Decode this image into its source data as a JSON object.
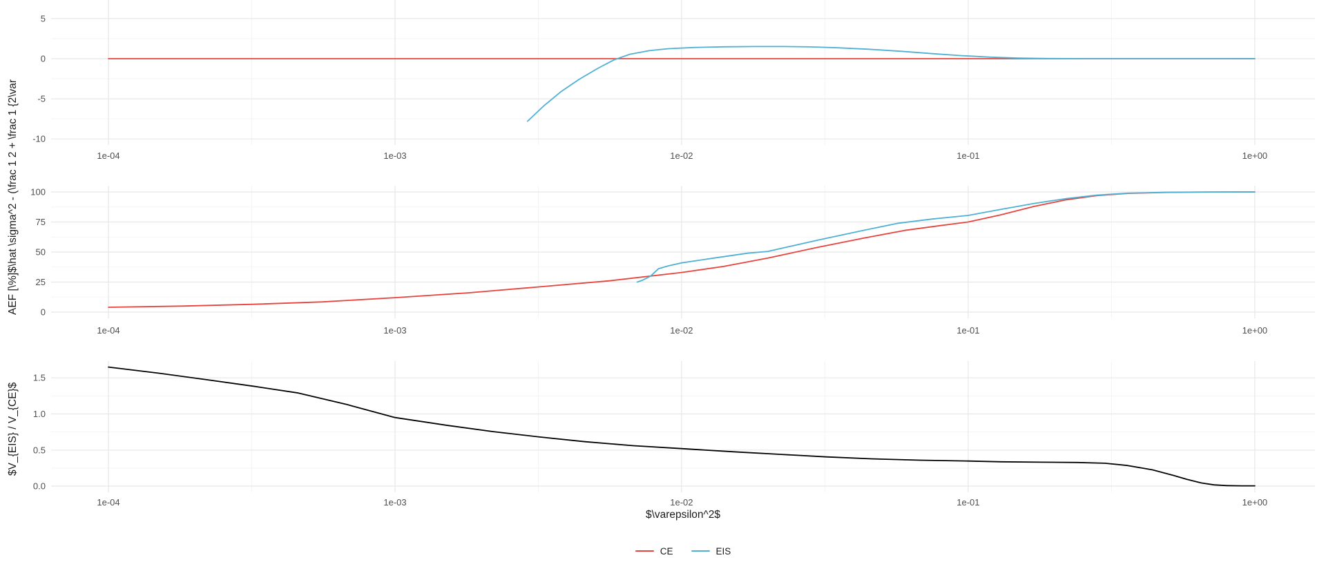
{
  "figure": {
    "y_axis_titles": {
      "top": "AEF [\\%]$\\hat \\sigma^2 - (\\frac 1 2 + \\frac 1 {2\\var",
      "bottom": "$V_{EIS} / V_{CE}$"
    },
    "x_axis": {
      "title": "$\\varepsilon^2$",
      "scale": "log10",
      "major_ticks": [
        {
          "value": 0.0001,
          "label": "1e-04"
        },
        {
          "value": 0.001,
          "label": "1e-03"
        },
        {
          "value": 0.01,
          "label": "1e-02"
        },
        {
          "value": 0.1,
          "label": "1e-01"
        },
        {
          "value": 1,
          "label": "1e+00"
        }
      ],
      "minor_tick_values": [
        0.0003162,
        0.003162,
        0.03162,
        0.3162
      ]
    },
    "legend": {
      "position": "bottom",
      "items": [
        {
          "label": "CE",
          "color": "#E8423C"
        },
        {
          "label": "EIS",
          "color": "#4DB1D4"
        }
      ]
    },
    "colors": {
      "ce": "#E8423C",
      "eis": "#4DB1D4",
      "ratio": "#000000",
      "grid_major": "#E7E7E7",
      "grid_minor": "#F3F3F3",
      "tick_text": "#4D4D4D",
      "title_text": "#1A1A1A",
      "background": "#FFFFFF"
    }
  },
  "chart_data": [
    {
      "type": "line",
      "panel": "top",
      "x_scale": "log10",
      "xlim": [
        0.0001,
        1
      ],
      "ylim": [
        -10.76,
        7.32
      ],
      "grid": true,
      "y_ticks": [
        {
          "value": 5,
          "label": "5"
        },
        {
          "value": 0,
          "label": "0"
        },
        {
          "value": -5,
          "label": "-5"
        },
        {
          "value": -10,
          "label": "-10"
        }
      ],
      "y_minor_values": [
        2.5,
        -2.5,
        -7.5
      ],
      "series": [
        {
          "name": "CE",
          "color": "#E8423C",
          "points": [
            [
              0.0001,
              0
            ],
            [
              1,
              0
            ]
          ]
        },
        {
          "name": "EIS",
          "color": "#4DB1D4",
          "points": [
            [
              0.0029,
              -7.8
            ],
            [
              0.0033,
              -5.9
            ],
            [
              0.0038,
              -4.1
            ],
            [
              0.0044,
              -2.55
            ],
            [
              0.0051,
              -1.2
            ],
            [
              0.0058,
              -0.15
            ],
            [
              0.0066,
              0.55
            ],
            [
              0.0077,
              1.0
            ],
            [
              0.009,
              1.25
            ],
            [
              0.011,
              1.4
            ],
            [
              0.014,
              1.48
            ],
            [
              0.018,
              1.52
            ],
            [
              0.023,
              1.52
            ],
            [
              0.028,
              1.47
            ],
            [
              0.035,
              1.36
            ],
            [
              0.045,
              1.18
            ],
            [
              0.058,
              0.93
            ],
            [
              0.075,
              0.63
            ],
            [
              0.095,
              0.38
            ],
            [
              0.12,
              0.19
            ],
            [
              0.15,
              0.07
            ],
            [
              0.19,
              0.02
            ],
            [
              0.25,
              0.005
            ],
            [
              0.4,
              0
            ],
            [
              1,
              0
            ]
          ]
        }
      ]
    },
    {
      "type": "line",
      "panel": "middle",
      "x_scale": "log10",
      "xlim": [
        0.0001,
        1
      ],
      "ylim": [
        -5.2,
        105.2
      ],
      "grid": true,
      "y_ticks": [
        {
          "value": 100,
          "label": "100"
        },
        {
          "value": 75,
          "label": "75"
        },
        {
          "value": 50,
          "label": "50"
        },
        {
          "value": 25,
          "label": "25"
        },
        {
          "value": 0,
          "label": "0"
        }
      ],
      "y_minor_values": [
        87.5,
        62.5,
        37.5,
        12.5
      ],
      "series": [
        {
          "name": "CE",
          "color": "#E8423C",
          "points": [
            [
              0.0001,
              4
            ],
            [
              0.00018,
              5
            ],
            [
              0.00032,
              6.5
            ],
            [
              0.00056,
              8.5
            ],
            [
              0.001,
              12
            ],
            [
              0.0018,
              16
            ],
            [
              0.0032,
              21
            ],
            [
              0.0056,
              26
            ],
            [
              0.01,
              33
            ],
            [
              0.014,
              38
            ],
            [
              0.02,
              45
            ],
            [
              0.03,
              54
            ],
            [
              0.043,
              61.5
            ],
            [
              0.06,
              68
            ],
            [
              0.08,
              72
            ],
            [
              0.1,
              75
            ],
            [
              0.13,
              81
            ],
            [
              0.17,
              88
            ],
            [
              0.22,
              93.5
            ],
            [
              0.28,
              97
            ],
            [
              0.36,
              98.8
            ],
            [
              0.5,
              99.7
            ],
            [
              0.7,
              99.95
            ],
            [
              1,
              100
            ]
          ]
        },
        {
          "name": "EIS",
          "color": "#4DB1D4",
          "points": [
            [
              0.007,
              25
            ],
            [
              0.0073,
              26.5
            ],
            [
              0.0078,
              30
            ],
            [
              0.0083,
              36
            ],
            [
              0.009,
              38.5
            ],
            [
              0.01,
              41
            ],
            [
              0.013,
              45
            ],
            [
              0.017,
              49
            ],
            [
              0.02,
              50.5
            ],
            [
              0.03,
              60
            ],
            [
              0.043,
              68
            ],
            [
              0.057,
              74
            ],
            [
              0.075,
              77.5
            ],
            [
              0.1,
              80.5
            ],
            [
              0.13,
              85.5
            ],
            [
              0.17,
              90.5
            ],
            [
              0.22,
              94.5
            ],
            [
              0.28,
              97.3
            ],
            [
              0.36,
              99
            ],
            [
              0.5,
              99.8
            ],
            [
              0.7,
              99.97
            ],
            [
              1,
              100
            ]
          ]
        }
      ]
    },
    {
      "type": "line",
      "panel": "bottom",
      "x_scale": "log10",
      "xlim": [
        0.0001,
        1
      ],
      "ylim": [
        -0.086,
        1.732
      ],
      "grid": true,
      "y_ticks": [
        {
          "value": 1.5,
          "label": "1.5"
        },
        {
          "value": 1.0,
          "label": "1.0"
        },
        {
          "value": 0.5,
          "label": "0.5"
        },
        {
          "value": 0.0,
          "label": "0.0"
        }
      ],
      "y_minor_values": [
        1.25,
        0.75,
        0.25
      ],
      "series": [
        {
          "name": "V_{EIS}/V_{CE}",
          "color": "#000000",
          "points": [
            [
              0.0001,
              1.65
            ],
            [
              0.00015,
              1.565
            ],
            [
              0.00022,
              1.475
            ],
            [
              0.00032,
              1.385
            ],
            [
              0.00046,
              1.29
            ],
            [
              0.00068,
              1.13
            ],
            [
              0.001,
              0.95
            ],
            [
              0.0015,
              0.845
            ],
            [
              0.0022,
              0.755
            ],
            [
              0.0032,
              0.68
            ],
            [
              0.0046,
              0.615
            ],
            [
              0.0068,
              0.56
            ],
            [
              0.01,
              0.52
            ],
            [
              0.015,
              0.477
            ],
            [
              0.022,
              0.44
            ],
            [
              0.032,
              0.405
            ],
            [
              0.046,
              0.378
            ],
            [
              0.068,
              0.359
            ],
            [
              0.1,
              0.347
            ],
            [
              0.13,
              0.337
            ],
            [
              0.18,
              0.331
            ],
            [
              0.24,
              0.327
            ],
            [
              0.3,
              0.317
            ],
            [
              0.36,
              0.285
            ],
            [
              0.44,
              0.225
            ],
            [
              0.52,
              0.148
            ],
            [
              0.58,
              0.093
            ],
            [
              0.65,
              0.044
            ],
            [
              0.72,
              0.017
            ],
            [
              0.8,
              0.007
            ],
            [
              0.9,
              0.004
            ],
            [
              1,
              0.004
            ]
          ]
        }
      ]
    }
  ]
}
